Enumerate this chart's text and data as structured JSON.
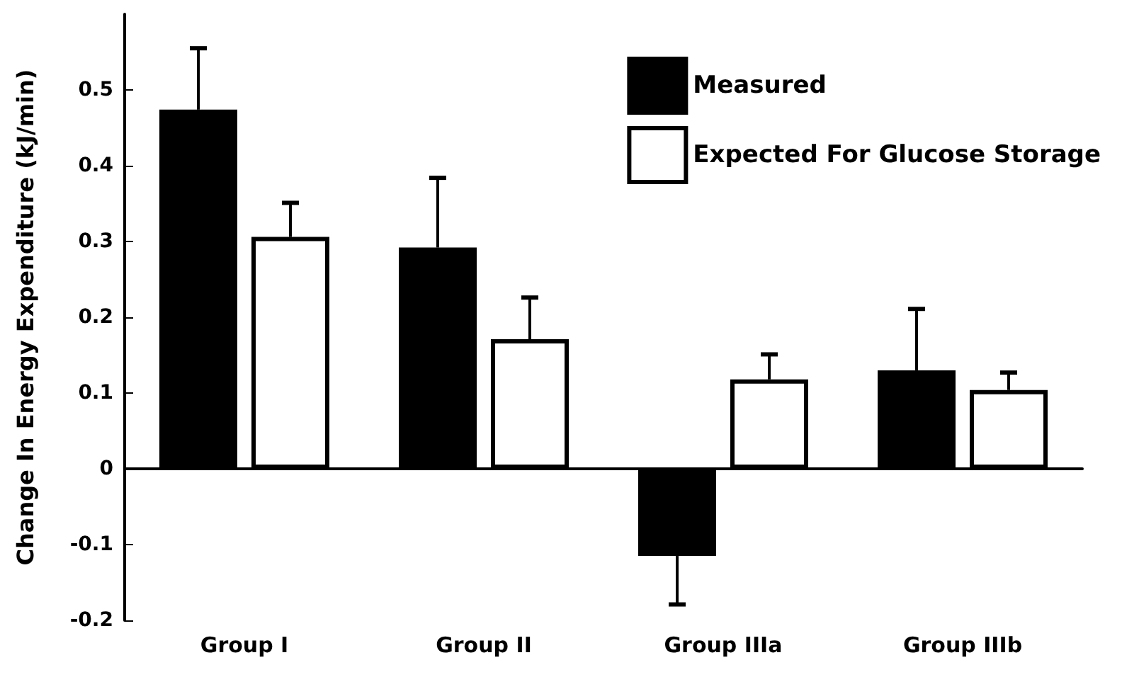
{
  "chart_data": {
    "type": "bar",
    "ylabel": "Change In Energy Expenditure (kJ/min)",
    "categories": [
      "Group I",
      "Group II",
      "Group IIIa",
      "Group IIIb"
    ],
    "series": [
      {
        "name": "Measured",
        "color": "#000000",
        "values": [
          0.474,
          0.292,
          -0.115,
          0.13
        ],
        "errors": [
          [
            0.474,
            0.555
          ],
          [
            0.292,
            0.384
          ],
          [
            -0.179,
            -0.115
          ],
          [
            0.13,
            0.211
          ]
        ]
      },
      {
        "name": "Expected For Glucose Storage",
        "color": "#ffffff",
        "values": [
          0.306,
          0.171,
          0.118,
          0.104
        ],
        "errors": [
          [
            0.306,
            0.351
          ],
          [
            0.171,
            0.226
          ],
          [
            0.118,
            0.151
          ],
          [
            0.104,
            0.127
          ]
        ]
      }
    ],
    "ylim": [
      -0.2,
      0.6
    ],
    "yticks": [
      -0.2,
      -0.1,
      0,
      0.1,
      0.2,
      0.3,
      0.4,
      0.5
    ],
    "legend": "top right"
  }
}
